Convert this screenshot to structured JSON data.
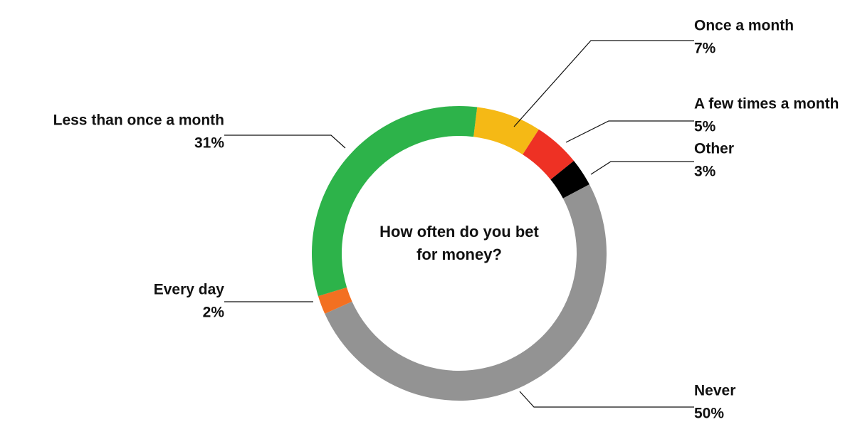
{
  "chart_data": {
    "type": "donut",
    "title": "How often do you bet for money?",
    "categories": [
      "Once a month",
      "A few times a month",
      "Other",
      "Never",
      "Every day",
      "Less than once a month"
    ],
    "values": [
      7,
      5,
      3,
      50,
      2,
      31
    ],
    "value_labels": [
      "7%",
      "5%",
      "3%",
      "50%",
      "2%",
      "31%"
    ],
    "colors": [
      "#f5b915",
      "#ee3124",
      "#000000",
      "#939393",
      "#f37021",
      "#2db34a"
    ]
  }
}
